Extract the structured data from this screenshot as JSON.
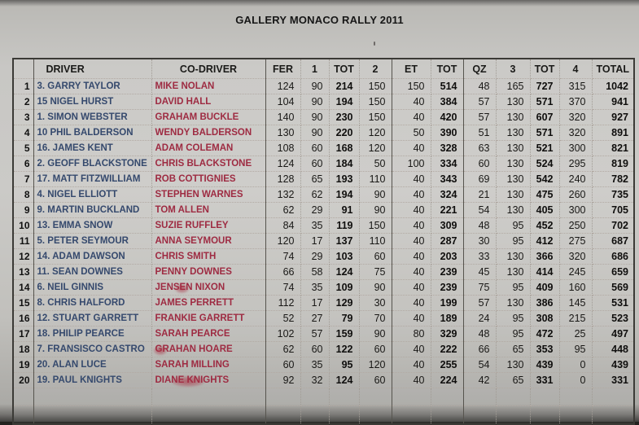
{
  "title": "GALLERY MONACO RALLY 2011",
  "colors": {
    "paper": "#c8c7c4",
    "driver_text": "#35496d",
    "codriver_text": "#9e2b42",
    "number_text": "#191816",
    "table_border": "#3b3a36"
  },
  "table": {
    "columns": [
      "",
      "DRIVER",
      "CO-DRIVER",
      "FER",
      "1",
      "TOT",
      "2",
      "ET",
      "TOT",
      "QZ",
      "3",
      "TOT",
      "4",
      "TOTAL"
    ],
    "rows": [
      {
        "pos": "1",
        "driver": "3. GARRY TAYLOR",
        "codriver": "MIKE NOLAN",
        "fer": "124",
        "s1": "90",
        "tot1": "214",
        "s2": "150",
        "et": "150",
        "tot2": "514",
        "qz": "48",
        "s3": "165",
        "tot3": "727",
        "s4": "315",
        "total": "1042",
        "smudge": "none"
      },
      {
        "pos": "2",
        "driver": "15 NIGEL HURST",
        "codriver": "DAVID HALL",
        "fer": "104",
        "s1": "90",
        "tot1": "194",
        "s2": "150",
        "et": "40",
        "tot2": "384",
        "qz": "57",
        "s3": "130",
        "tot3": "571",
        "s4": "370",
        "total": "941",
        "smudge": "none"
      },
      {
        "pos": "3",
        "driver": "1. SIMON WEBSTER",
        "codriver": "GRAHAM BUCKLE",
        "fer": "140",
        "s1": "90",
        "tot1": "230",
        "s2": "150",
        "et": "40",
        "tot2": "420",
        "qz": "57",
        "s3": "130",
        "tot3": "607",
        "s4": "320",
        "total": "927",
        "smudge": "none"
      },
      {
        "pos": "4",
        "driver": "10 PHIL BALDERSON",
        "codriver": "WENDY BALDERSON",
        "fer": "130",
        "s1": "90",
        "tot1": "220",
        "s2": "120",
        "et": "50",
        "tot2": "390",
        "qz": "51",
        "s3": "130",
        "tot3": "571",
        "s4": "320",
        "total": "891",
        "smudge": "none"
      },
      {
        "pos": "5",
        "driver": "16. JAMES KENT",
        "codriver": "ADAM COLEMAN",
        "fer": "108",
        "s1": "60",
        "tot1": "168",
        "s2": "120",
        "et": "40",
        "tot2": "328",
        "qz": "63",
        "s3": "130",
        "tot3": "521",
        "s4": "300",
        "total": "821",
        "smudge": "none"
      },
      {
        "pos": "6",
        "driver": "2. GEOFF BLACKSTONE",
        "codriver": "CHRIS BLACKSTONE",
        "fer": "124",
        "s1": "60",
        "tot1": "184",
        "s2": "50",
        "et": "100",
        "tot2": "334",
        "qz": "60",
        "s3": "130",
        "tot3": "524",
        "s4": "295",
        "total": "819",
        "smudge": "none"
      },
      {
        "pos": "7",
        "driver": "17. MATT FITZWILLIAM",
        "codriver": "ROB COTTIGNIES",
        "fer": "128",
        "s1": "65",
        "tot1": "193",
        "s2": "110",
        "et": "40",
        "tot2": "343",
        "qz": "69",
        "s3": "130",
        "tot3": "542",
        "s4": "240",
        "total": "782",
        "smudge": "none"
      },
      {
        "pos": "8",
        "driver": "4. NIGEL ELLIOTT",
        "codriver": "STEPHEN WARNES",
        "fer": "132",
        "s1": "62",
        "tot1": "194",
        "s2": "90",
        "et": "40",
        "tot2": "324",
        "qz": "21",
        "s3": "130",
        "tot3": "475",
        "s4": "260",
        "total": "735",
        "smudge": "none"
      },
      {
        "pos": "9",
        "driver": "9. MARTIN BUCKLAND",
        "codriver": "TOM ALLEN",
        "fer": "62",
        "s1": "29",
        "tot1": "91",
        "s2": "90",
        "et": "40",
        "tot2": "221",
        "qz": "54",
        "s3": "130",
        "tot3": "405",
        "s4": "300",
        "total": "705",
        "smudge": "none"
      },
      {
        "pos": "10",
        "driver": "13. EMMA SNOW",
        "codriver": "SUZIE RUFFLEY",
        "fer": "84",
        "s1": "35",
        "tot1": "119",
        "s2": "150",
        "et": "40",
        "tot2": "309",
        "qz": "48",
        "s3": "95",
        "tot3": "452",
        "s4": "250",
        "total": "702",
        "smudge": "none"
      },
      {
        "pos": "11",
        "driver": "5. PETER SEYMOUR",
        "codriver": "ANNA SEYMOUR",
        "fer": "120",
        "s1": "17",
        "tot1": "137",
        "s2": "110",
        "et": "40",
        "tot2": "287",
        "qz": "30",
        "s3": "95",
        "tot3": "412",
        "s4": "275",
        "total": "687",
        "smudge": "none"
      },
      {
        "pos": "12",
        "driver": "14. ADAM DAWSON",
        "codriver": "CHRIS SMITH",
        "fer": "74",
        "s1": "29",
        "tot1": "103",
        "s2": "60",
        "et": "40",
        "tot2": "203",
        "qz": "33",
        "s3": "130",
        "tot3": "366",
        "s4": "320",
        "total": "686",
        "smudge": "none"
      },
      {
        "pos": "13",
        "driver": "11. SEAN DOWNES",
        "codriver": "PENNY DOWNES",
        "fer": "66",
        "s1": "58",
        "tot1": "124",
        "s2": "75",
        "et": "40",
        "tot2": "239",
        "qz": "45",
        "s3": "130",
        "tot3": "414",
        "s4": "245",
        "total": "659",
        "smudge": "none"
      },
      {
        "pos": "14",
        "driver": "6. NEIL GINNIS",
        "codriver": "JENSEN NIXON",
        "fer": "74",
        "s1": "35",
        "tot1": "109",
        "s2": "90",
        "et": "40",
        "tot2": "239",
        "qz": "75",
        "s3": "95",
        "tot3": "409",
        "s4": "160",
        "total": "569",
        "smudge": "mid"
      },
      {
        "pos": "15",
        "driver": "8. CHRIS HALFORD",
        "codriver": "JAMES PERRETT",
        "fer": "112",
        "s1": "17",
        "tot1": "129",
        "s2": "30",
        "et": "40",
        "tot2": "199",
        "qz": "57",
        "s3": "130",
        "tot3": "386",
        "s4": "145",
        "total": "531",
        "smudge": "none"
      },
      {
        "pos": "16",
        "driver": "12. STUART GARRETT",
        "codriver": "FRANKIE GARRETT",
        "fer": "52",
        "s1": "27",
        "tot1": "79",
        "s2": "70",
        "et": "40",
        "tot2": "189",
        "qz": "24",
        "s3": "95",
        "tot3": "308",
        "s4": "215",
        "total": "523",
        "smudge": "none"
      },
      {
        "pos": "17",
        "driver": "18. PHILIP PEARCE",
        "codriver": "SARAH PEARCE",
        "fer": "102",
        "s1": "57",
        "tot1": "159",
        "s2": "90",
        "et": "80",
        "tot2": "329",
        "qz": "48",
        "s3": "95",
        "tot3": "472",
        "s4": "25",
        "total": "497",
        "smudge": "none"
      },
      {
        "pos": "18",
        "driver": "7. FRANSISCO CASTRO",
        "codriver": "GRAHAN HOARE",
        "fer": "62",
        "s1": "60",
        "tot1": "122",
        "s2": "60",
        "et": "40",
        "tot2": "222",
        "qz": "66",
        "s3": "65",
        "tot3": "353",
        "s4": "95",
        "total": "448",
        "smudge": "start"
      },
      {
        "pos": "19",
        "driver": "20. ALAN LUCE",
        "codriver": "SARAH MILLING",
        "fer": "60",
        "s1": "35",
        "tot1": "95",
        "s2": "120",
        "et": "40",
        "tot2": "255",
        "qz": "54",
        "s3": "130",
        "tot3": "439",
        "s4": "0",
        "total": "439",
        "smudge": "none"
      },
      {
        "pos": "20",
        "driver": "19. PAUL KNIGHTS",
        "codriver": "DIANE KNIGHTS",
        "fer": "92",
        "s1": "32",
        "tot1": "124",
        "s2": "60",
        "et": "40",
        "tot2": "224",
        "qz": "42",
        "s3": "65",
        "tot3": "331",
        "s4": "0",
        "total": "331",
        "smudge": "wide"
      }
    ]
  }
}
